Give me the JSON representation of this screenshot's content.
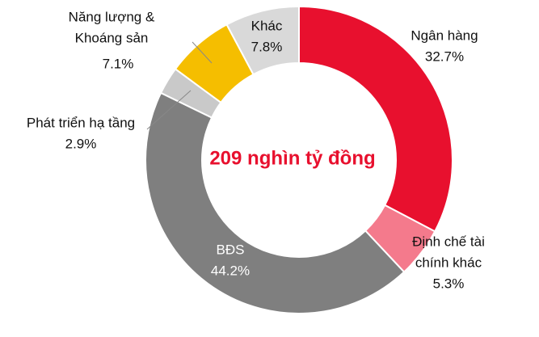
{
  "chart_data": {
    "type": "pie",
    "center_text": "209 nghìn tỷ đồng",
    "categories": [
      [
        "Ngân hàng"
      ],
      [
        "Định chế tài",
        "chính khác"
      ],
      [
        "BĐS"
      ],
      [
        "Phát triển hạ tầng"
      ],
      [
        "Năng lượng &",
        "Khoáng sản"
      ],
      [
        "Khác"
      ]
    ],
    "values": [
      32.7,
      5.3,
      44.2,
      2.9,
      7.1,
      7.8
    ],
    "value_labels": [
      "32.7%",
      "5.3%",
      "44.2%",
      "2.9%",
      "7.1%",
      "7.8%"
    ],
    "colors": [
      "#e8102e",
      "#f47a8c",
      "#7f7f7f",
      "#c9c9c9",
      "#f5be00",
      "#d9d9d9"
    ]
  }
}
